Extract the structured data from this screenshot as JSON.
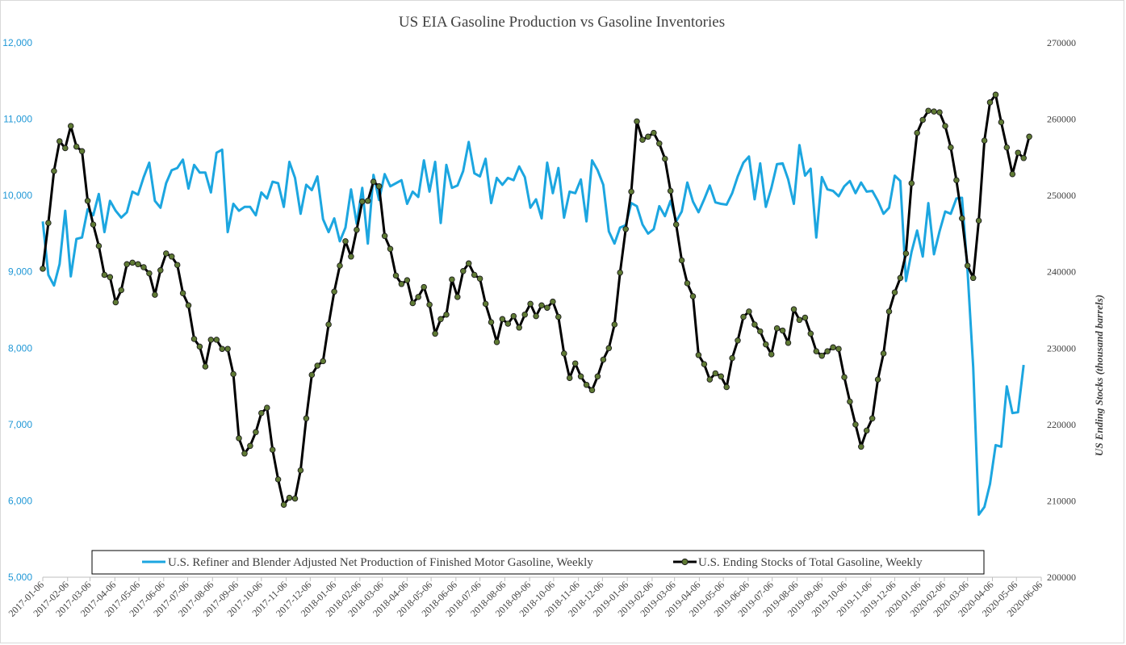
{
  "chart_data": {
    "type": "line",
    "title": "US EIA Gasoline Production vs Gasoline Inventories",
    "y_left": {
      "label": "",
      "range": [
        5000,
        12000
      ],
      "ticks": [
        "5,000",
        "6,000",
        "7,000",
        "8,000",
        "9,000",
        "10,000",
        "11,000",
        "12,000"
      ],
      "color": "#1f97d6"
    },
    "y_right": {
      "label": "US Ending Stocks (thousand barrels)",
      "range": [
        200000,
        270000
      ],
      "ticks": [
        "200000",
        "210000",
        "220000",
        "230000",
        "240000",
        "250000",
        "260000",
        "270000"
      ]
    },
    "x_range": [
      "2017-01-06",
      "2020-06-06"
    ],
    "x_ticks": [
      "2017-01-06",
      "2017-02-06",
      "2017-03-06",
      "2017-04-06",
      "2017-05-06",
      "2017-06-06",
      "2017-07-06",
      "2017-08-06",
      "2017-09-06",
      "2017-10-06",
      "2017-11-06",
      "2017-12-06",
      "2018-01-06",
      "2018-02-06",
      "2018-03-06",
      "2018-04-06",
      "2018-05-06",
      "2018-06-06",
      "2018-07-06",
      "2018-08-06",
      "2018-09-06",
      "2018-10-06",
      "2018-11-06",
      "2018-12-06",
      "2019-01-06",
      "2019-02-06",
      "2019-03-06",
      "2019-04-06",
      "2019-05-06",
      "2019-06-06",
      "2019-07-06",
      "2019-08-06",
      "2019-09-06",
      "2019-10-06",
      "2019-11-06",
      "2019-12-06",
      "2020-01-06",
      "2020-02-06",
      "2020-03-06",
      "2020-04-06",
      "2020-05-06",
      "2020-06-06"
    ],
    "legend_position": "bottom",
    "grid": false,
    "series": [
      {
        "name": "U.S. Refiner and Blender Adjusted Net Production of Finished Motor Gasoline, Weekly",
        "axis": "left",
        "color": "#1ca6e0",
        "markers": false,
        "x_start": "2017-01-06",
        "step_days": 7,
        "values": [
          9660,
          8960,
          8820,
          9100,
          9800,
          8940,
          9430,
          9450,
          9820,
          9740,
          10020,
          9520,
          9930,
          9800,
          9710,
          9780,
          10050,
          10010,
          10240,
          10430,
          9930,
          9840,
          10160,
          10330,
          10360,
          10470,
          10090,
          10400,
          10300,
          10300,
          10040,
          10560,
          10600,
          9520,
          9890,
          9800,
          9850,
          9850,
          9740,
          10040,
          9960,
          10180,
          10160,
          9850,
          10440,
          10230,
          9760,
          10140,
          10070,
          10250,
          9690,
          9520,
          9700,
          9400,
          9580,
          10080,
          9630,
          10100,
          9370,
          10270,
          9940,
          10280,
          10120,
          10160,
          10200,
          9890,
          10050,
          9980,
          10460,
          10050,
          10440,
          9640,
          10400,
          10100,
          10130,
          10320,
          10700,
          10290,
          10250,
          10480,
          9900,
          10230,
          10140,
          10230,
          10200,
          10380,
          10240,
          9840,
          9950,
          9700,
          10430,
          10030,
          10360,
          9710,
          10050,
          10030,
          10210,
          9660,
          10460,
          10330,
          10140,
          9530,
          9370,
          9580,
          9610,
          9900,
          9860,
          9620,
          9500,
          9560,
          9860,
          9730,
          9930,
          9660,
          9790,
          10170,
          9920,
          9780,
          9950,
          10130,
          9910,
          9890,
          9880,
          10030,
          10250,
          10430,
          10510,
          9950,
          10420,
          9850,
          10100,
          10410,
          10420,
          10210,
          9890,
          10660,
          10260,
          10350,
          9450,
          10240,
          10080,
          10060,
          9990,
          10120,
          10190,
          10030,
          10170,
          10050,
          10060,
          9930,
          9760,
          9840,
          10260,
          10190,
          8880,
          9260,
          9540,
          9200,
          9900,
          9230,
          9530,
          9790,
          9760,
          9960,
          9970,
          9010,
          7750,
          5820,
          5920,
          6220,
          6730,
          6710,
          7500,
          7150,
          7160,
          7780
        ]
      },
      {
        "name": "U.S. Ending Stocks of Total Gasoline, Weekly",
        "axis": "right",
        "color": "#000000",
        "marker_color": "#5f7a34",
        "markers": true,
        "x_start": "2017-01-06",
        "step_days": 7,
        "values": [
          240400,
          246400,
          253200,
          257100,
          256200,
          259100,
          256400,
          255800,
          249300,
          246200,
          243400,
          239600,
          239300,
          236000,
          237600,
          241000,
          241200,
          241000,
          240600,
          239800,
          237000,
          240200,
          242400,
          242000,
          240900,
          237200,
          235600,
          231200,
          230200,
          227600,
          231100,
          231100,
          229900,
          229900,
          226600,
          218200,
          216200,
          217200,
          219000,
          221500,
          222200,
          216700,
          212800,
          209500,
          210400,
          210300,
          214000,
          220800,
          226500,
          227700,
          228300,
          233100,
          237400,
          240800,
          244000,
          242000,
          245500,
          249200,
          249300,
          251800,
          251200,
          244700,
          243000,
          239500,
          238400,
          238900,
          235900,
          236700,
          238000,
          235700,
          231900,
          233800,
          234400,
          239000,
          236700,
          240100,
          241100,
          239600,
          239100,
          235800,
          233400,
          230800,
          233800,
          233200,
          234200,
          232700,
          234400,
          235800,
          234200,
          235600,
          235300,
          236100,
          234100,
          229300,
          226100,
          228000,
          226300,
          225200,
          224500,
          226300,
          228500,
          230000,
          233100,
          239900,
          245600,
          250500,
          259700,
          257300,
          257700,
          258200,
          256800,
          254800,
          250600,
          246200,
          241500,
          238500,
          236800,
          229100,
          227900,
          225900,
          226700,
          226300,
          224900,
          228700,
          231000,
          234100,
          234800,
          233100,
          232200,
          230500,
          229200,
          232600,
          232300,
          230700,
          235100,
          233700,
          234000,
          231900,
          229600,
          229000,
          229600,
          230100,
          229900,
          226200,
          223000,
          220000,
          217100,
          219200,
          220800,
          225900,
          229300,
          234800,
          237300,
          239200,
          242400,
          251600,
          258200,
          259900,
          261100,
          261000,
          260900,
          259100,
          256300,
          252000,
          247000,
          240800,
          239200,
          246700,
          257200,
          262200,
          263200,
          259600,
          256300,
          252800,
          255600,
          254900,
          257700
        ]
      }
    ]
  },
  "legend": {
    "items": [
      {
        "label": "U.S. Refiner and Blender Adjusted Net Production of Finished Motor Gasoline, Weekly"
      },
      {
        "label": "U.S. Ending Stocks of Total Gasoline, Weekly"
      }
    ]
  }
}
